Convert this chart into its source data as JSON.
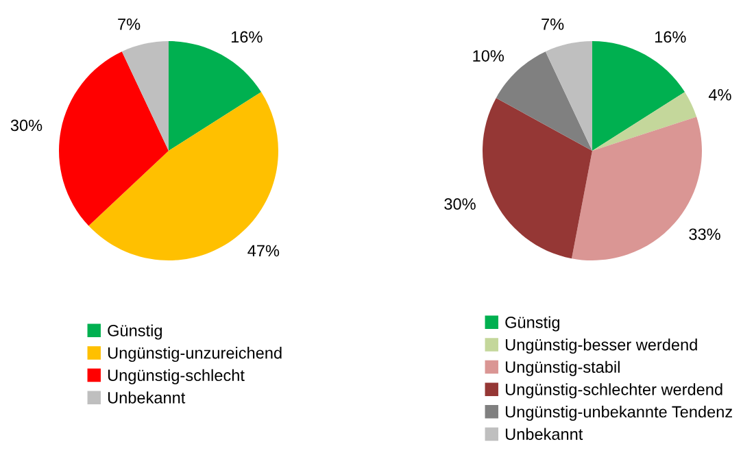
{
  "chart_data": [
    {
      "type": "pie",
      "categories": [
        "Günstig",
        "Ungünstig-unzureichend",
        "Ungünstig-schlecht",
        "Unbekannt"
      ],
      "values": [
        16,
        47,
        30,
        7
      ],
      "value_labels": [
        "16%",
        "47%",
        "30%",
        "7%"
      ],
      "colors": [
        "#00b050",
        "#ffc000",
        "#ff0000",
        "#bfbfbf"
      ],
      "legend": "bottom"
    },
    {
      "type": "pie",
      "categories": [
        "Günstig",
        "Ungünstig-besser werdend",
        "Ungünstig-stabil",
        "Ungünstig-schlechter werdend",
        "Ungünstig-unbekannte Tendenz",
        "Unbekannt"
      ],
      "values": [
        16,
        4,
        33,
        30,
        10,
        7
      ],
      "value_labels": [
        "16%",
        "4%",
        "33%",
        "30%",
        "10%",
        "7%"
      ],
      "colors": [
        "#00b050",
        "#c4d79b",
        "#da9694",
        "#953735",
        "#808080",
        "#bfbfbf"
      ],
      "legend": "bottom"
    }
  ]
}
